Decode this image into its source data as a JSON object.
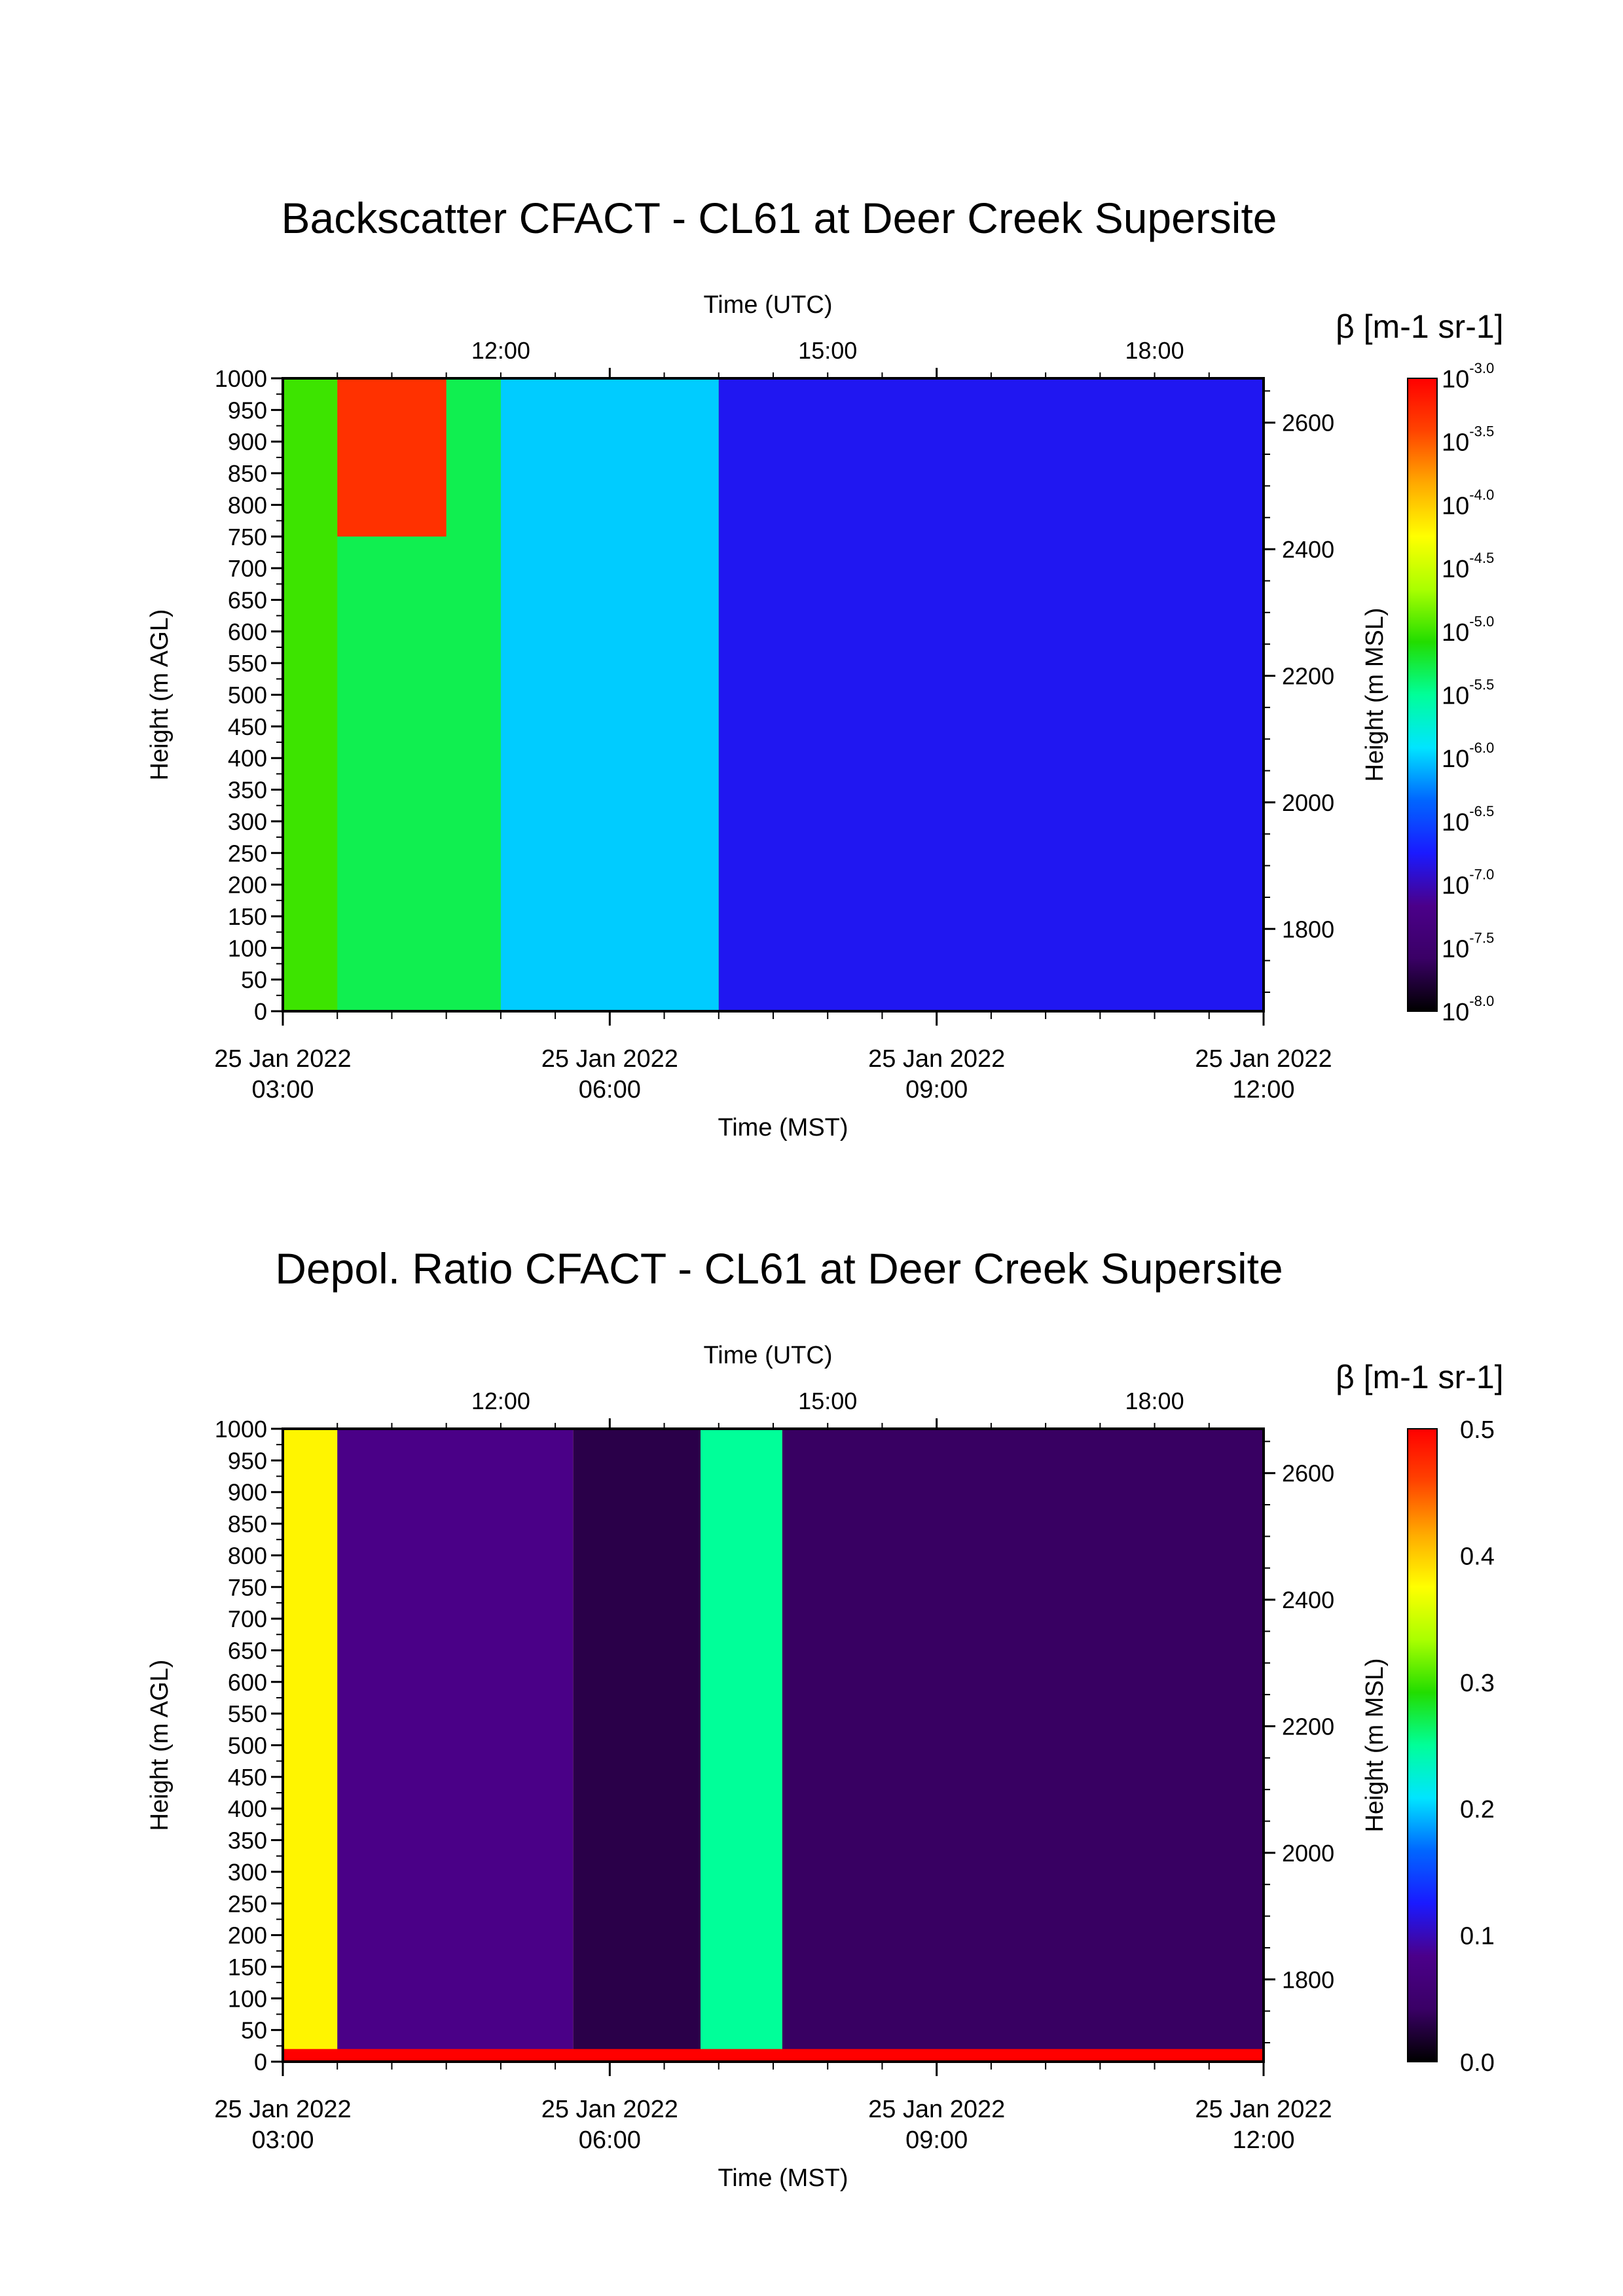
{
  "chart_data": [
    {
      "type": "heatmap",
      "title": "Backscatter CFACT - CL61 at Deer Creek Supersite",
      "xlabel": "Time (MST)",
      "x2label": "Time (UTC)",
      "ylabel": "Height (m AGL)",
      "y2label": "Height (m MSL)",
      "colorbar_label": "β [m-1 sr-1]",
      "colorbar_scale": "log",
      "colorbar_range": [
        1e-08,
        0.001
      ],
      "colorbar_ticks": [
        "10-8.0",
        "10-7.5",
        "10-7.0",
        "10-6.5",
        "10-6.0",
        "10-5.5",
        "10-5.0",
        "10-4.5",
        "10-4.0",
        "10-3.5",
        "10-3.0"
      ],
      "x_ticks": [
        {
          "date": "25 Jan 2022",
          "time": "03:00"
        },
        {
          "date": "25 Jan 2022",
          "time": "06:00"
        },
        {
          "date": "25 Jan 2022",
          "time": "09:00"
        },
        {
          "date": "25 Jan 2022",
          "time": "12:00"
        }
      ],
      "x2_ticks": [
        "12:00",
        "15:00",
        "18:00"
      ],
      "y_ticks": [
        "0",
        "50",
        "100",
        "150",
        "200",
        "250",
        "300",
        "350",
        "400",
        "450",
        "500",
        "550",
        "600",
        "650",
        "700",
        "750",
        "800",
        "850",
        "900",
        "950",
        "1000"
      ],
      "y2_ticks": [
        "1800",
        "2000",
        "2200",
        "2400",
        "2600"
      ],
      "xlim": [
        "03:00",
        "12:00"
      ],
      "ylim": [
        0,
        1000
      ],
      "y2lim": [
        1670,
        2670
      ],
      "colormap": [
        "#000000",
        "#3a0066",
        "#4b008a",
        "#1a1aff",
        "#0066ff",
        "#00e5ff",
        "#00ff99",
        "#22dd00",
        "#aaff00",
        "#ffff00",
        "#ffaa00",
        "#ff4400",
        "#ff0000"
      ],
      "field_summary": [
        {
          "time_range": [
            "03:00",
            "03:30"
          ],
          "height_range": [
            0,
            1000
          ],
          "value": "10-5.0"
        },
        {
          "time_range": [
            "03:30",
            "05:00"
          ],
          "height_range": [
            0,
            1000
          ],
          "value": "10-5.3"
        },
        {
          "time_range": [
            "03:30",
            "04:30"
          ],
          "height_range": [
            750,
            1000
          ],
          "value": "10-3.3"
        },
        {
          "time_range": [
            "05:00",
            "07:00"
          ],
          "height_range": [
            0,
            1000
          ],
          "value": "10-6.0"
        },
        {
          "time_range": [
            "07:00",
            "12:00"
          ],
          "height_range": [
            0,
            1000
          ],
          "value": "10-6.8"
        }
      ]
    },
    {
      "type": "heatmap",
      "title": "Depol. Ratio CFACT - CL61 at Deer Creek Supersite",
      "xlabel": "Time (MST)",
      "x2label": "Time (UTC)",
      "ylabel": "Height (m AGL)",
      "y2label": "Height (m MSL)",
      "colorbar_label": "β [m-1 sr-1]",
      "colorbar_scale": "linear",
      "colorbar_range": [
        0.0,
        0.5
      ],
      "colorbar_ticks": [
        "0.0",
        "0.1",
        "0.2",
        "0.3",
        "0.4",
        "0.5"
      ],
      "x_ticks": [
        {
          "date": "25 Jan 2022",
          "time": "03:00"
        },
        {
          "date": "25 Jan 2022",
          "time": "06:00"
        },
        {
          "date": "25 Jan 2022",
          "time": "09:00"
        },
        {
          "date": "25 Jan 2022",
          "time": "12:00"
        }
      ],
      "x2_ticks": [
        "12:00",
        "15:00",
        "18:00"
      ],
      "y_ticks": [
        "0",
        "50",
        "100",
        "150",
        "200",
        "250",
        "300",
        "350",
        "400",
        "450",
        "500",
        "550",
        "600",
        "650",
        "700",
        "750",
        "800",
        "850",
        "900",
        "950",
        "1000"
      ],
      "y2_ticks": [
        "1800",
        "2000",
        "2200",
        "2400",
        "2600"
      ],
      "xlim": [
        "03:00",
        "12:00"
      ],
      "ylim": [
        0,
        1000
      ],
      "y2lim": [
        1670,
        2670
      ],
      "colormap": [
        "#000000",
        "#3a0066",
        "#4b008a",
        "#1a1aff",
        "#0066ff",
        "#00e5ff",
        "#00ff99",
        "#22dd00",
        "#aaff00",
        "#ffff00",
        "#ffaa00",
        "#ff4400",
        "#ff0000"
      ],
      "field_summary": [
        {
          "time_range": [
            "03:00",
            "03:30"
          ],
          "height_range": [
            0,
            1000
          ],
          "value": 0.38
        },
        {
          "time_range": [
            "03:30",
            "05:40"
          ],
          "height_range": [
            0,
            1000
          ],
          "value": 0.08
        },
        {
          "time_range": [
            "05:40",
            "06:50"
          ],
          "height_range": [
            0,
            1000
          ],
          "value": 0.03
        },
        {
          "time_range": [
            "06:50",
            "07:35"
          ],
          "height_range": [
            0,
            1000
          ],
          "value": 0.25
        },
        {
          "time_range": [
            "07:35",
            "12:00"
          ],
          "height_range": [
            0,
            1000
          ],
          "value": 0.04
        },
        {
          "time_range": [
            "03:00",
            "12:00"
          ],
          "height_range": [
            0,
            20
          ],
          "value": 0.5
        }
      ]
    }
  ]
}
